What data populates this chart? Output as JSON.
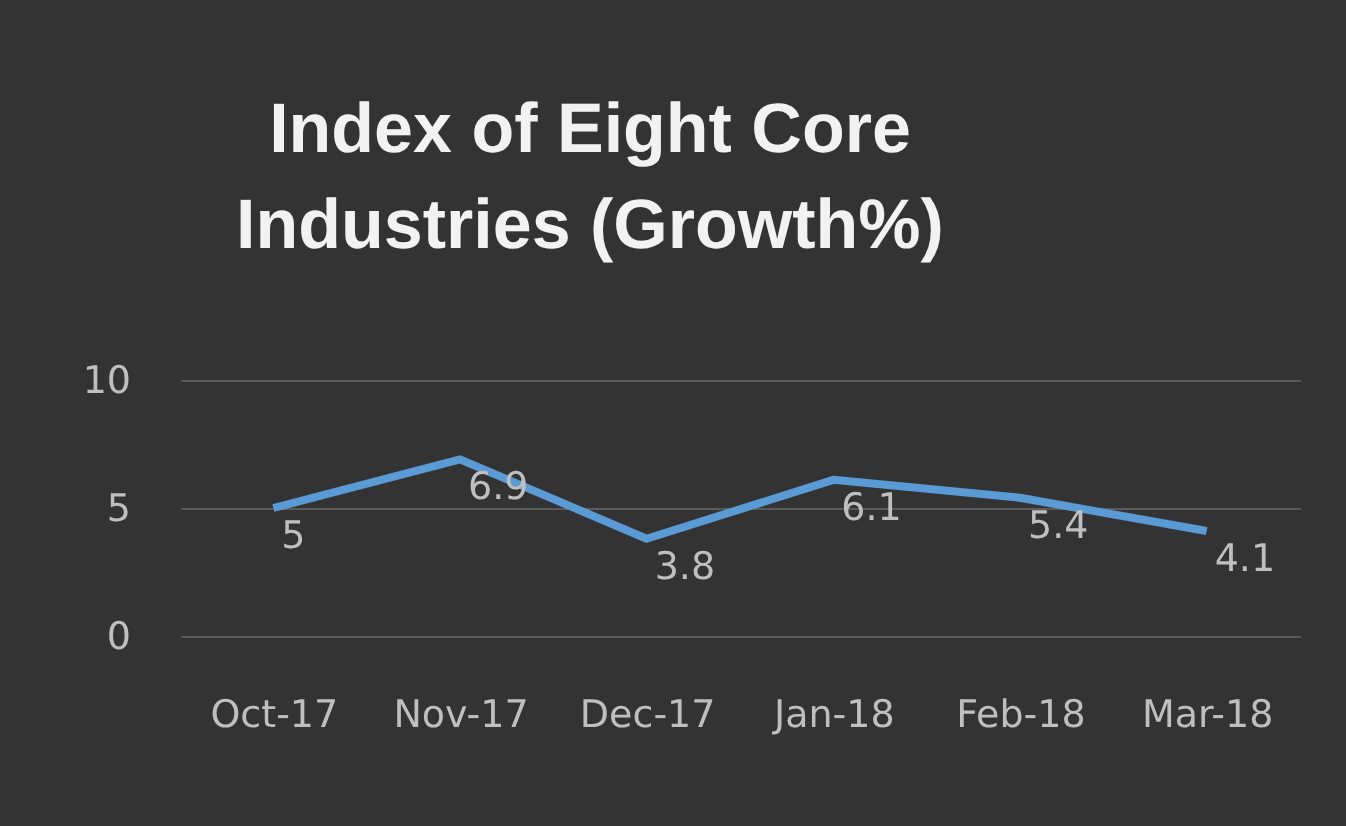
{
  "chart_data": {
    "type": "line",
    "title": [
      "Index of Eight Core",
      "Industries (Growth%)"
    ],
    "categories": [
      "Oct-17",
      "Nov-17",
      "Dec-17",
      "Jan-18",
      "Feb-18",
      "Mar-18"
    ],
    "series": [
      {
        "color": "#5b9bd5",
        "values": [
          5,
          6.9,
          3.8,
          6.1,
          5.4,
          4.1
        ]
      }
    ],
    "ylim": [
      0,
      10
    ],
    "yticks": [
      0,
      5,
      10
    ],
    "grid": "y",
    "data_labels": true,
    "marker": "none",
    "line_style": "solid"
  }
}
